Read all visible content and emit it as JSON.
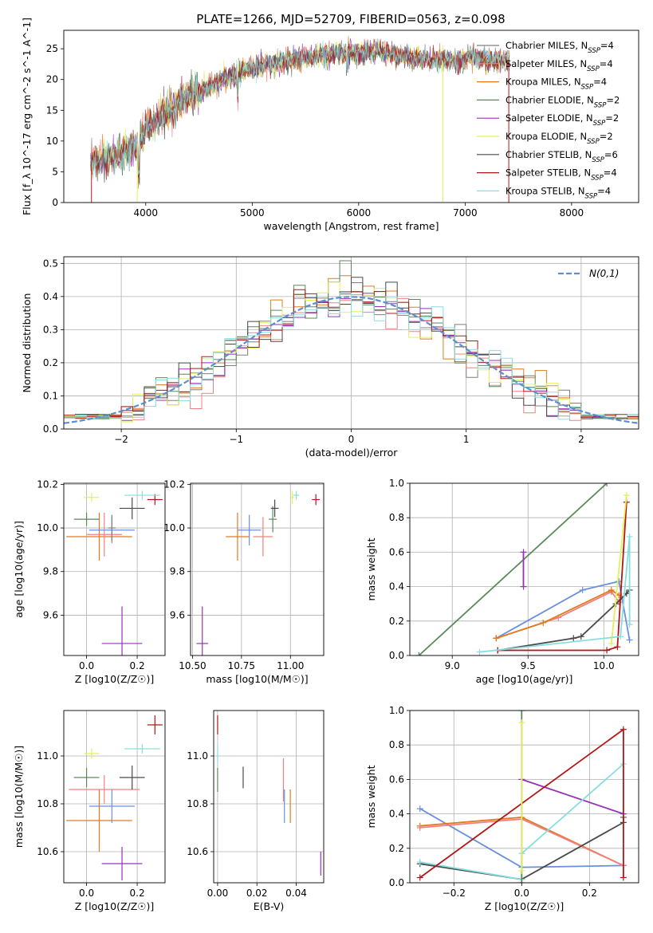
{
  "figure": {
    "title": "PLATE=1266, MJD=52709, FIBERID=0563, z=0.098"
  },
  "series": [
    {
      "name": "Chabrier MILES, N_SSP=4",
      "color": "#7f7f7f"
    },
    {
      "name": "Salpeter MILES, N_SSP=4",
      "color": "#f08080"
    },
    {
      "name": "Kroupa MILES, N_SSP=4",
      "color": "#e07b1f"
    },
    {
      "name": "Chabrier ELODIE, N_SSP=2",
      "color": "#5a8a5a"
    },
    {
      "name": "Salpeter ELODIE, N_SSP=2",
      "color": "#9b30b8"
    },
    {
      "name": "Kroupa ELODIE, N_SSP=2",
      "color": "#e3f05a"
    },
    {
      "name": "Chabrier STELIB, N_SSP=6",
      "color": "#4a4a4a"
    },
    {
      "name": "Salpeter STELIB, N_SSP=4",
      "color": "#b01818"
    },
    {
      "name": "Kroupa STELIB, N_SSP=4",
      "color": "#88dede"
    }
  ],
  "extra_colors": {
    "steelblue": "#6a8fdc",
    "normal": "#5b8fd0"
  },
  "chart_data": [
    {
      "id": "spectrum",
      "type": "line",
      "title": "PLATE=1266, MJD=52709, FIBERID=0563, z=0.098",
      "xlabel": "wavelength [Angstrom, rest frame]",
      "ylabel": "Flux [f_λ 10^-17 erg cm^-2 s^-1 A^-1]",
      "xlim": [
        3230,
        8630
      ],
      "ylim": [
        0,
        28
      ],
      "xticks": [
        4000,
        5000,
        6000,
        7000,
        8000
      ],
      "yticks": [
        0,
        5,
        10,
        15,
        20,
        25
      ],
      "grid": false,
      "legend": "top-right",
      "continuum_x": [
        3480,
        3700,
        3900,
        4000,
        4300,
        4600,
        5000,
        5300,
        5600,
        5900,
        6200,
        6500,
        6800,
        7100,
        7400
      ],
      "continuum_y": [
        6.5,
        7.5,
        9,
        12,
        16,
        19,
        22,
        23,
        23.8,
        24.5,
        24.5,
        23.5,
        23,
        23.5,
        23
      ],
      "dropouts": [
        {
          "x": 3490,
          "series": "Salpeter STELIB, N_SSP=4"
        },
        {
          "x": 3920,
          "series": "Kroupa ELODIE, N_SSP=2"
        },
        {
          "x": 6790,
          "series": "Kroupa ELODIE, N_SSP=2"
        },
        {
          "x": 7410,
          "series": "Salpeter STELIB, N_SSP=4"
        }
      ]
    },
    {
      "id": "residuals",
      "type": "area",
      "xlabel": "(data-model)/error",
      "ylabel": "Normed distribution",
      "xlim": [
        -2.5,
        2.5
      ],
      "ylim": [
        0,
        0.52
      ],
      "xticks": [
        -2,
        -1,
        0,
        1,
        2
      ],
      "yticks": [
        0.0,
        0.1,
        0.2,
        0.3,
        0.4,
        0.5
      ],
      "grid": true,
      "legend": "top-right",
      "reference_label": "N(0,1)",
      "bin_width": 0.1,
      "bins_from": -2.5
    },
    {
      "id": "age-vs-Z",
      "type": "scatter",
      "xlabel": "Z [log10(Z/Z☉)]",
      "ylabel": "age [log10(age/yr)]",
      "xlim": [
        -0.09,
        0.31
      ],
      "ylim": [
        9.415,
        10.205
      ],
      "xticks": [
        0.0,
        0.2
      ],
      "yticks": [
        9.6,
        9.8,
        10.0,
        10.2
      ],
      "grid": true,
      "points": [
        {
          "x": 0.14,
          "y": 9.47,
          "xerr": 0.08,
          "yerr": 0.17,
          "color": "#9b30b8"
        },
        {
          "x": 0.05,
          "y": 9.96,
          "xerr": 0.13,
          "yerr": 0.11,
          "color": "#e07b1f"
        },
        {
          "x": 0.07,
          "y": 9.97,
          "xerr": 0.07,
          "yerr": 0.1,
          "color": "#f08080"
        },
        {
          "x": 0.1,
          "y": 9.99,
          "xerr": 0.09,
          "yerr": 0.06,
          "color": "#6a8fdc"
        },
        {
          "x": 0.0,
          "y": 10.04,
          "xerr": 0.05,
          "yerr": 0.03,
          "color": "#5a8a5a"
        },
        {
          "x": 0.18,
          "y": 10.09,
          "xerr": 0.05,
          "yerr": 0.05,
          "color": "#4a4a4a"
        },
        {
          "x": 0.27,
          "y": 10.13,
          "xerr": 0.03,
          "yerr": 0.025,
          "color": "#b01818"
        },
        {
          "x": 0.22,
          "y": 10.15,
          "xerr": 0.07,
          "yerr": 0.02,
          "color": "#88dede"
        },
        {
          "x": 0.02,
          "y": 10.14,
          "xerr": 0.03,
          "yerr": 0.02,
          "color": "#e3f05a"
        },
        {
          "x": 0.1,
          "y": 10.0,
          "xerr": 0.015,
          "yerr": 0.06,
          "color": "#7f7f7f"
        }
      ]
    },
    {
      "id": "age-vs-mass",
      "type": "scatter",
      "xlabel": "mass [log10(M/M☉)]",
      "ylabel": "",
      "xlim": [
        10.49,
        11.17
      ],
      "ylim": [
        9.415,
        10.205
      ],
      "xticks": [
        10.5,
        10.75,
        11.0
      ],
      "xticklabels": [
        "10.50",
        "10.75",
        "11.00"
      ],
      "yticks": [
        9.6,
        9.8,
        10.0,
        10.2
      ],
      "grid": true,
      "points": [
        {
          "x": 10.55,
          "y": 9.47,
          "xerr": 0.03,
          "yerr": 0.17,
          "color": "#9b30b8"
        },
        {
          "x": 10.73,
          "y": 9.96,
          "xerr": 0.06,
          "yerr": 0.11,
          "color": "#e07b1f"
        },
        {
          "x": 10.86,
          "y": 9.96,
          "xerr": 0.05,
          "yerr": 0.09,
          "color": "#f08080"
        },
        {
          "x": 10.79,
          "y": 9.99,
          "xerr": 0.06,
          "yerr": 0.07,
          "color": "#6a8fdc"
        },
        {
          "x": 10.91,
          "y": 10.04,
          "xerr": 0.02,
          "yerr": 0.06,
          "color": "#5a8a5a"
        },
        {
          "x": 10.92,
          "y": 10.09,
          "xerr": 0.02,
          "yerr": 0.04,
          "color": "#4a4a4a"
        },
        {
          "x": 11.13,
          "y": 10.13,
          "xerr": 0.02,
          "yerr": 0.025,
          "color": "#b01818"
        },
        {
          "x": 11.03,
          "y": 10.15,
          "xerr": 0.015,
          "yerr": 0.02,
          "color": "#88dede"
        },
        {
          "x": 11.01,
          "y": 10.14,
          "xerr": 0.01,
          "yerr": 0.03,
          "color": "#e3f05a"
        }
      ]
    },
    {
      "id": "mass-weight-vs-age",
      "type": "line",
      "xlabel": "age [log10(age/yr)]",
      "ylabel": "mass weight",
      "xlim": [
        8.72,
        10.23
      ],
      "ylim": [
        0.0,
        1.0
      ],
      "xticks": [
        9.0,
        9.5,
        10.0
      ],
      "yticks": [
        0.0,
        0.2,
        0.4,
        0.6,
        0.8,
        1.0
      ],
      "grid": true,
      "series": [
        {
          "color": "#5a8a5a",
          "x": [
            8.78,
            10.02
          ],
          "y": [
            0.0,
            1.0
          ]
        },
        {
          "color": "#9b30b8",
          "x": [
            9.47,
            9.47
          ],
          "y": [
            0.4,
            0.6
          ]
        },
        {
          "color": "#6a8fdc",
          "x": [
            9.29,
            9.86,
            10.1,
            10.17
          ],
          "y": [
            0.1,
            0.38,
            0.43,
            0.09
          ]
        },
        {
          "color": "#f08080",
          "x": [
            9.29,
            9.7,
            10.05,
            10.1
          ],
          "y": [
            0.1,
            0.22,
            0.37,
            0.31
          ]
        },
        {
          "color": "#e07b1f",
          "x": [
            9.29,
            9.6,
            10.05,
            10.1
          ],
          "y": [
            0.1,
            0.19,
            0.38,
            0.35
          ]
        },
        {
          "color": "#4a4a4a",
          "x": [
            9.3,
            9.8,
            9.85,
            10.08,
            10.15,
            10.17
          ],
          "y": [
            0.03,
            0.1,
            0.11,
            0.3,
            0.36,
            0.38
          ]
        },
        {
          "color": "#b01818",
          "x": [
            9.3,
            10.02,
            10.09,
            10.15
          ],
          "y": [
            0.03,
            0.03,
            0.05,
            0.89
          ]
        },
        {
          "color": "#e3f05a",
          "x": [
            10.05,
            10.15
          ],
          "y": [
            0.07,
            0.93
          ]
        },
        {
          "color": "#88dede",
          "x": [
            9.18,
            10.11,
            10.17,
            10.17
          ],
          "y": [
            0.02,
            0.11,
            0.69,
            0.18
          ]
        }
      ]
    },
    {
      "id": "mass-vs-Z",
      "type": "scatter",
      "xlabel": "Z [log10(Z/Z☉)]",
      "ylabel": "mass [log10(M/M☉)]",
      "xlim": [
        -0.09,
        0.31
      ],
      "ylim": [
        10.47,
        11.19
      ],
      "xticks": [
        0.0,
        0.2
      ],
      "yticks": [
        10.6,
        10.8,
        11.0
      ],
      "grid": true,
      "points": [
        {
          "x": 0.14,
          "y": 10.55,
          "xerr": 0.08,
          "yerr": 0.07,
          "color": "#9b30b8"
        },
        {
          "x": 0.05,
          "y": 10.73,
          "xerr": 0.13,
          "yerr": 0.13,
          "color": "#e07b1f"
        },
        {
          "x": 0.07,
          "y": 10.86,
          "xerr": 0.14,
          "yerr": 0.06,
          "color": "#f08080"
        },
        {
          "x": 0.1,
          "y": 10.79,
          "xerr": 0.09,
          "yerr": 0.07,
          "color": "#6a8fdc"
        },
        {
          "x": 0.0,
          "y": 10.91,
          "xerr": 0.05,
          "yerr": 0.04,
          "color": "#5a8a5a"
        },
        {
          "x": 0.18,
          "y": 10.91,
          "xerr": 0.05,
          "yerr": 0.05,
          "color": "#4a4a4a"
        },
        {
          "x": 0.27,
          "y": 11.13,
          "xerr": 0.03,
          "yerr": 0.04,
          "color": "#b01818"
        },
        {
          "x": 0.22,
          "y": 11.03,
          "xerr": 0.07,
          "yerr": 0.02,
          "color": "#88dede"
        },
        {
          "x": 0.02,
          "y": 11.01,
          "xerr": 0.03,
          "yerr": 0.02,
          "color": "#e3f05a"
        }
      ]
    },
    {
      "id": "mass-vs-EBV",
      "type": "scatter",
      "xlabel": "E(B-V)",
      "ylabel": "",
      "xlim": [
        -0.002,
        0.054
      ],
      "ylim": [
        10.47,
        11.19
      ],
      "xticks": [
        0.0,
        0.02,
        0.04
      ],
      "xticklabels": [
        "0.00",
        "0.02",
        "0.04"
      ],
      "yticks": [
        10.6,
        10.8,
        11.0
      ],
      "grid": true,
      "points": [
        {
          "x": 0.0,
          "y": 11.13,
          "xerr": 0,
          "yerr": 0.04,
          "color": "#b01818"
        },
        {
          "x": 0.0,
          "y": 11.01,
          "xerr": 0,
          "yerr": 0.04,
          "color": "#88dede"
        },
        {
          "x": 0.0,
          "y": 10.9,
          "xerr": 0,
          "yerr": 0.05,
          "color": "#5a8a5a"
        },
        {
          "x": 0.013,
          "y": 10.91,
          "xerr": 0,
          "yerr": 0.045,
          "color": "#4a4a4a"
        },
        {
          "x": 0.0335,
          "y": 10.9,
          "xerr": 0,
          "yerr": 0.09,
          "color": "#f08080"
        },
        {
          "x": 0.034,
          "y": 10.79,
          "xerr": 0,
          "yerr": 0.07,
          "color": "#6a8fdc"
        },
        {
          "x": 0.037,
          "y": 10.79,
          "xerr": 0,
          "yerr": 0.07,
          "color": "#e07b1f"
        },
        {
          "x": 0.0525,
          "y": 10.55,
          "xerr": 0,
          "yerr": 0.05,
          "color": "#9b30b8"
        }
      ]
    },
    {
      "id": "mass-weight-vs-Z",
      "type": "line",
      "xlabel": "Z [log10(Z/Z☉)]",
      "ylabel": "mass weight",
      "xlim": [
        -0.33,
        0.345
      ],
      "ylim": [
        0.0,
        1.0
      ],
      "xticks": [
        -0.2,
        0.0,
        0.2
      ],
      "yticks": [
        0.0,
        0.2,
        0.4,
        0.6,
        0.8,
        1.0
      ],
      "grid": true,
      "series": [
        {
          "color": "#6a8fdc",
          "x": [
            -0.3,
            0.0,
            0.3
          ],
          "y": [
            0.43,
            0.09,
            0.1
          ]
        },
        {
          "color": "#e07b1f",
          "x": [
            -0.3,
            0.0,
            0.3
          ],
          "y": [
            0.33,
            0.38,
            0.1
          ]
        },
        {
          "color": "#f08080",
          "x": [
            -0.3,
            0.0,
            0.3
          ],
          "y": [
            0.32,
            0.37,
            0.1
          ]
        },
        {
          "color": "#9b30b8",
          "x": [
            0.0,
            0.3
          ],
          "y": [
            0.6,
            0.4
          ]
        },
        {
          "color": "#4a4a4a",
          "x": [
            -0.3,
            0.0,
            0.3,
            0.3
          ],
          "y": [
            0.11,
            0.02,
            0.35,
            0.38
          ]
        },
        {
          "color": "#88dede",
          "x": [
            -0.3,
            0.0,
            0.0,
            0.3
          ],
          "y": [
            0.12,
            0.02,
            0.17,
            0.69
          ]
        },
        {
          "color": "#b01818",
          "x": [
            -0.3,
            0.3,
            0.3
          ],
          "y": [
            0.03,
            0.89,
            0.03
          ]
        },
        {
          "color": "#5a8a5a",
          "x": [
            0.0,
            0.0
          ],
          "y": [
            0.0,
            1.0
          ]
        },
        {
          "color": "#e3f05a",
          "x": [
            0.0,
            0.0
          ],
          "y": [
            0.07,
            0.93
          ]
        }
      ]
    }
  ]
}
